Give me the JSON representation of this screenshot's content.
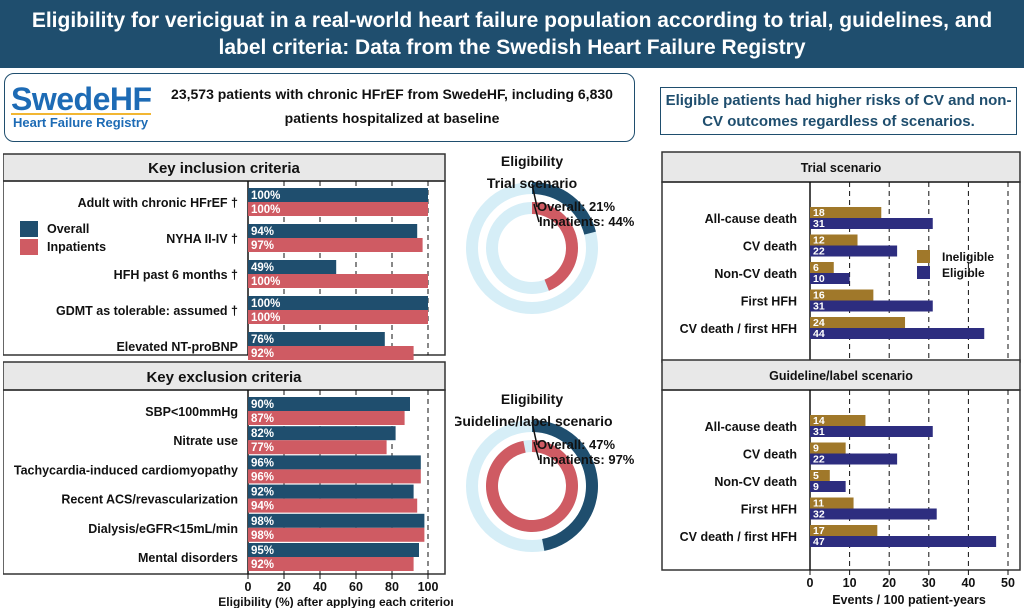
{
  "title": "Eligibility for vericiguat in a real-world heart failure population according to trial, guidelines, and label criteria: Data from the Swedish Heart Failure Registry",
  "logo": {
    "line1": "SwedeHF",
    "line2": "Heart Failure Registry"
  },
  "info_text": "23,573 patients with chronic HFrEF from SwedeHF, including 6,830 patients hospitalized at baseline",
  "callout": "Eligible patients had higher risks of CV and non-CV outcomes regardless of scenarios.",
  "colors": {
    "overall": "#1f4e6e",
    "inpatients": "#cf5b63",
    "ineligible": "#a0782a",
    "eligible": "#2d2d7f",
    "donut_bg": "#d6eef7"
  },
  "chart_data": [
    {
      "type": "bar",
      "orientation": "horizontal",
      "inclusion_header": "Key inclusion criteria",
      "exclusion_header": "Key exclusion criteria",
      "xlabel": "Eligibility (%) after applying each criterion",
      "xlim": [
        0,
        100
      ],
      "xticks": [
        0,
        20,
        40,
        60,
        80,
        100
      ],
      "legend": [
        "Overall",
        "Inpatients"
      ],
      "inclusion": [
        {
          "label": "Adult with chronic HFrEF †",
          "overall": 100,
          "inpatients": 100
        },
        {
          "label": "NYHA II-IV †",
          "overall": 94,
          "inpatients": 97
        },
        {
          "label": "HFH past 6 months †",
          "overall": 49,
          "inpatients": 100
        },
        {
          "label": "GDMT as tolerable: assumed †",
          "overall": 100,
          "inpatients": 100
        },
        {
          "label": "Elevated NT-proBNP",
          "overall": 76,
          "inpatients": 92
        }
      ],
      "exclusion": [
        {
          "label": "SBP<100mmHg",
          "overall": 90,
          "inpatients": 87
        },
        {
          "label": "Nitrate use",
          "overall": 82,
          "inpatients": 77
        },
        {
          "label": "Tachycardia-induced cardiomyopathy",
          "overall": 96,
          "inpatients": 96
        },
        {
          "label": "Recent ACS/revascularization",
          "overall": 92,
          "inpatients": 94
        },
        {
          "label": "Dialysis/eGFR<15mL/min",
          "overall": 98,
          "inpatients": 98
        },
        {
          "label": "Mental disorders",
          "overall": 95,
          "inpatients": 92
        }
      ]
    },
    {
      "type": "pie",
      "variant": "donut",
      "title_line1": "Eligibility",
      "title_line2": "Trial scenario",
      "overall_label": "Overall: 21%",
      "inpatients_label": "Inpatients: 44%",
      "overall": 21,
      "inpatients": 44
    },
    {
      "type": "pie",
      "variant": "donut",
      "title_line1": "Eligibility",
      "title_line2": "Guideline/label scenario",
      "overall_label": "Overall: 47%",
      "inpatients_label": "Inpatients: 97%",
      "overall": 47,
      "inpatients": 97
    },
    {
      "type": "bar",
      "orientation": "horizontal",
      "title": "Trial scenario",
      "legend": [
        "Ineligible",
        "Eligible"
      ],
      "xlim": [
        0,
        50
      ],
      "categories": [
        "All-cause death",
        "CV death",
        "Non-CV death",
        "First HFH",
        "CV death / first HFH"
      ],
      "series": [
        {
          "name": "Ineligible",
          "values": [
            18,
            12,
            6,
            16,
            24
          ]
        },
        {
          "name": "Eligible",
          "values": [
            31,
            22,
            10,
            31,
            44
          ]
        }
      ]
    },
    {
      "type": "bar",
      "orientation": "horizontal",
      "title": "Guideline/label scenario",
      "xlabel": "Events / 100 patient-years",
      "xlim": [
        0,
        50
      ],
      "xticks": [
        0,
        10,
        20,
        30,
        40,
        50
      ],
      "categories": [
        "All-cause death",
        "CV death",
        "Non-CV death",
        "First HFH",
        "CV death / first HFH"
      ],
      "series": [
        {
          "name": "Ineligible",
          "values": [
            14,
            9,
            5,
            11,
            17
          ]
        },
        {
          "name": "Eligible",
          "values": [
            31,
            22,
            9,
            32,
            47
          ]
        }
      ]
    }
  ]
}
